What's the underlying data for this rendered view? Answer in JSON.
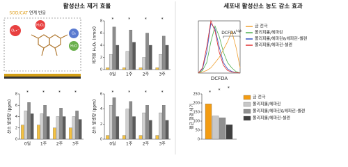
{
  "panels": {
    "left_title": "활성산소 제거 효율",
    "right_title": "세포내 활성산소 농도 감소 효과"
  },
  "schematic": {
    "caption_a": "SOD/CAT",
    "caption_b": "연계 반응",
    "labels": [
      "O₂•⁻",
      "H₂O₂",
      "O₂",
      "H₂O"
    ]
  },
  "chart_data": [
    {
      "type": "bar",
      "ylabel": "제거된 H₂O₂ (nmol)",
      "categories": [
        "0일",
        "1주",
        "2주",
        "3주"
      ],
      "ylim": [
        0,
        8
      ],
      "yticks": [
        0,
        2,
        4,
        6,
        8
      ],
      "series": [
        {
          "color": "#f5c242",
          "values": [
            0.3,
            0.3,
            0.3,
            0.3
          ]
        },
        {
          "color": "#d0d0d0",
          "values": [
            2.5,
            3,
            2,
            2.5
          ]
        },
        {
          "color": "#8c8c8c",
          "values": [
            7,
            6.5,
            6,
            5.5
          ]
        },
        {
          "color": "#5a5a5a",
          "values": [
            4,
            4.5,
            4,
            4
          ]
        }
      ],
      "annotations": [
        "*",
        "*",
        "*",
        "*"
      ]
    },
    {
      "type": "bar",
      "ylabel": "산소 발생량 (ppm)",
      "categories": [
        "0일",
        "1주",
        "2주",
        "3주"
      ],
      "ylim": [
        0,
        8
      ],
      "yticks": [
        0,
        2,
        4,
        6,
        8
      ],
      "series": [
        {
          "color": "#f5c242",
          "values": [
            2.5,
            2.5,
            2,
            2
          ]
        },
        {
          "color": "#d0d0d0",
          "values": [
            5,
            4.5,
            4,
            4
          ]
        },
        {
          "color": "#8c8c8c",
          "values": [
            6.5,
            6,
            5.5,
            5
          ]
        },
        {
          "color": "#5a5a5a",
          "values": [
            4.5,
            4,
            4,
            3.5
          ]
        }
      ],
      "annotations": [
        "*",
        "*",
        "*",
        "*"
      ]
    },
    {
      "type": "bar",
      "ylabel": "산소 발생량 (ppm)",
      "categories": [
        "0일",
        "1주",
        "2주",
        "3주"
      ],
      "ylim": [
        0,
        6
      ],
      "yticks": [
        0,
        2,
        4,
        6
      ],
      "series": [
        {
          "color": "#f5c242",
          "values": [
            0.5,
            0.5,
            0.5,
            0.5
          ]
        },
        {
          "color": "#d0d0d0",
          "values": [
            4.5,
            4,
            3.5,
            3.5
          ]
        },
        {
          "color": "#8c8c8c",
          "values": [
            5.5,
            5,
            4.5,
            4.5
          ]
        },
        {
          "color": "#5a5a5a",
          "values": [
            3,
            3,
            2.5,
            2.5
          ]
        }
      ],
      "annotations": [
        "*",
        "*",
        "*",
        "*"
      ]
    },
    {
      "type": "line",
      "xlabel": "DCFDA",
      "gate_label": "DCFDA",
      "gate_label_sup": "high",
      "x": [
        0,
        10,
        20,
        30,
        40,
        50,
        60,
        70,
        80,
        90,
        100
      ],
      "xlim": [
        0,
        100
      ],
      "ylim": [
        0,
        100
      ],
      "gate": [
        60,
        100
      ],
      "series": [
        {
          "name": "금 전극",
          "color": "#f0a030",
          "values": [
            0,
            2,
            5,
            10,
            20,
            30,
            45,
            60,
            80,
            50,
            10
          ]
        },
        {
          "name": "폴리피롤/헤파린",
          "color": "#4caf50",
          "values": [
            0,
            5,
            20,
            60,
            90,
            70,
            40,
            20,
            10,
            3,
            0
          ]
        },
        {
          "name": "폴리피롤/헤파린&헤파린-셀렌",
          "color": "#3050c0",
          "values": [
            0,
            8,
            40,
            95,
            85,
            50,
            20,
            8,
            3,
            1,
            0
          ]
        },
        {
          "name": "폴리피롤/헤파린-셀렌",
          "color": "#e03030",
          "values": [
            0,
            10,
            50,
            100,
            80,
            40,
            15,
            5,
            2,
            1,
            0
          ]
        }
      ]
    },
    {
      "type": "bar",
      "ylabel": "평균 형광 세기",
      "categories": [
        null
      ],
      "ylim": [
        0,
        250
      ],
      "yticks": [
        0,
        50,
        100,
        150,
        200,
        250
      ],
      "legend": true,
      "series": [
        {
          "name": "금 전극",
          "color": "#f39c12",
          "values": [
            195
          ]
        },
        {
          "name": "폴리피롤/헤파린",
          "color": "#c8c8c8",
          "values": [
            128
          ]
        },
        {
          "name": "폴리피롤/헤파린&헤파린-셀렌",
          "color": "#909090",
          "values": [
            118
          ]
        },
        {
          "name": "폴리피롤/헤파린-셀렌",
          "color": "#404040",
          "values": [
            80
          ]
        }
      ],
      "annotations": [
        "*",
        "*",
        "*"
      ]
    }
  ]
}
